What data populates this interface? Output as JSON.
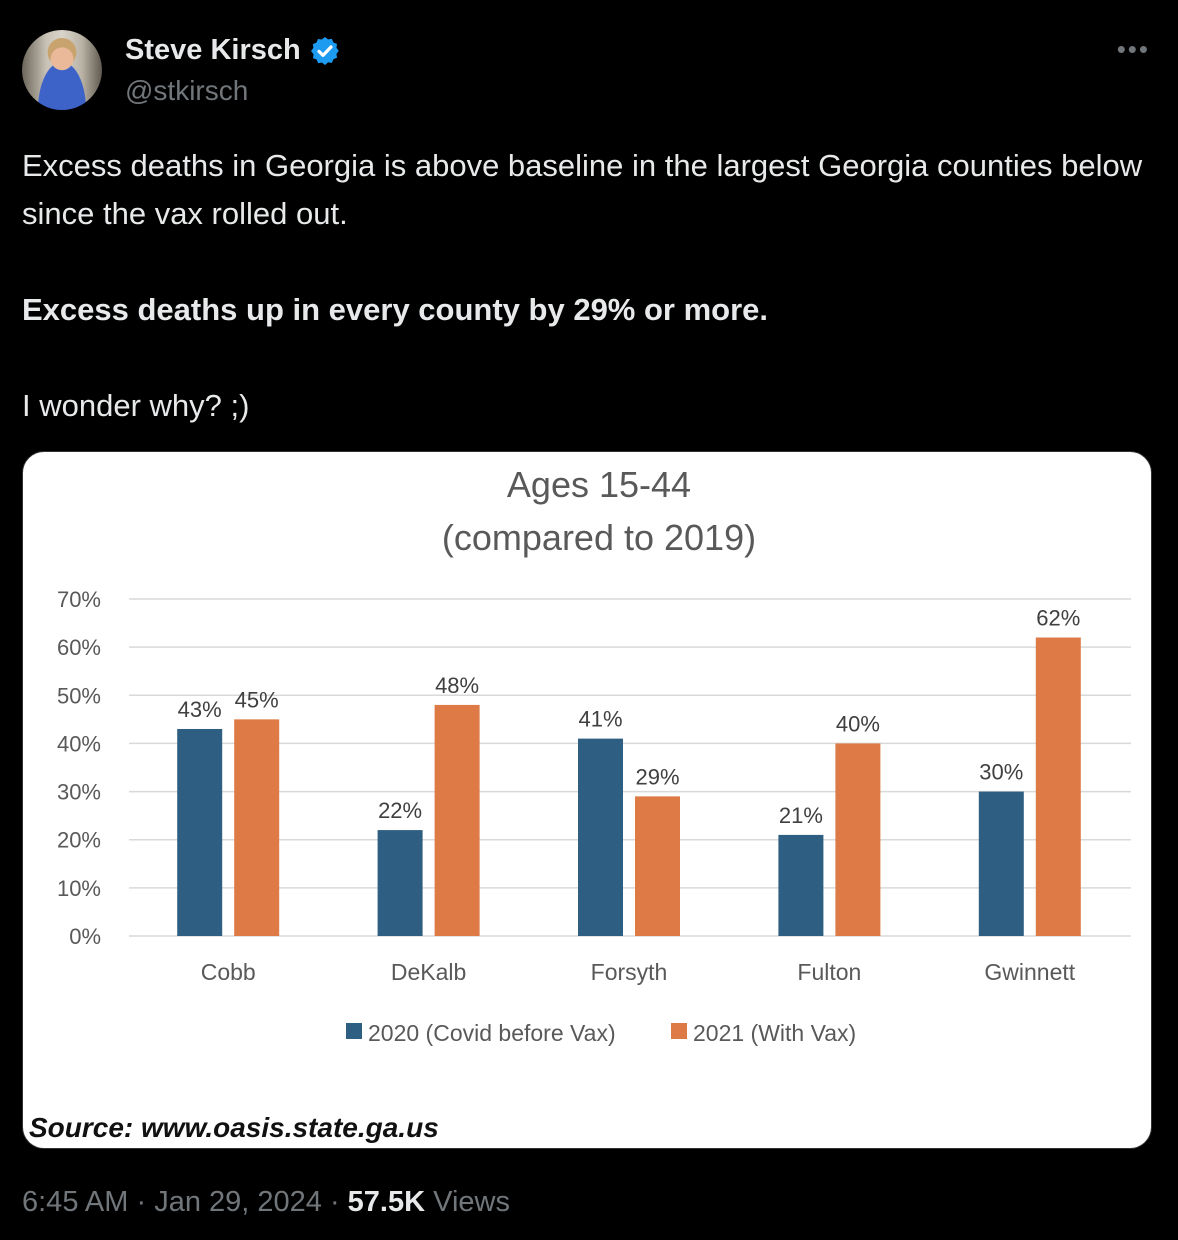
{
  "author": {
    "name": "Steve Kirsch",
    "handle": "@stkirsch",
    "verified_color": "#1d9bf0"
  },
  "more_label": "•••",
  "tweet": {
    "line1": "Excess deaths in Georgia is above baseline in the largest Georgia counties below since the vax rolled out.",
    "line2": "Excess deaths up in every county by 29% or more.",
    "line3": "I wonder why? ;)"
  },
  "footer": {
    "time": "6:45 AM",
    "sep1": " · ",
    "date": "Jan 29, 2024",
    "sep2": " · ",
    "views_count": "57.5K",
    "views_label": " Views"
  },
  "source_text": "Source: www.oasis.state.ga.us",
  "chart_data": {
    "type": "bar",
    "title": "Ages 15-44",
    "subtitle": "(compared to 2019)",
    "categories": [
      "Cobb",
      "DeKalb",
      "Forsyth",
      "Fulton",
      "Gwinnett"
    ],
    "series": [
      {
        "name": "2020 (Covid before Vax)",
        "color": "#2e5f82",
        "values": [
          43,
          22,
          41,
          21,
          30
        ]
      },
      {
        "name": "2021 (With Vax)",
        "color": "#dd7a45",
        "values": [
          45,
          48,
          29,
          40,
          62
        ]
      }
    ],
    "ylim": [
      0,
      70
    ],
    "yticks": [
      "0%",
      "10%",
      "20%",
      "30%",
      "40%",
      "50%",
      "60%",
      "70%"
    ],
    "data_label_suffix": "%",
    "grid": true,
    "legend": "bottom"
  }
}
